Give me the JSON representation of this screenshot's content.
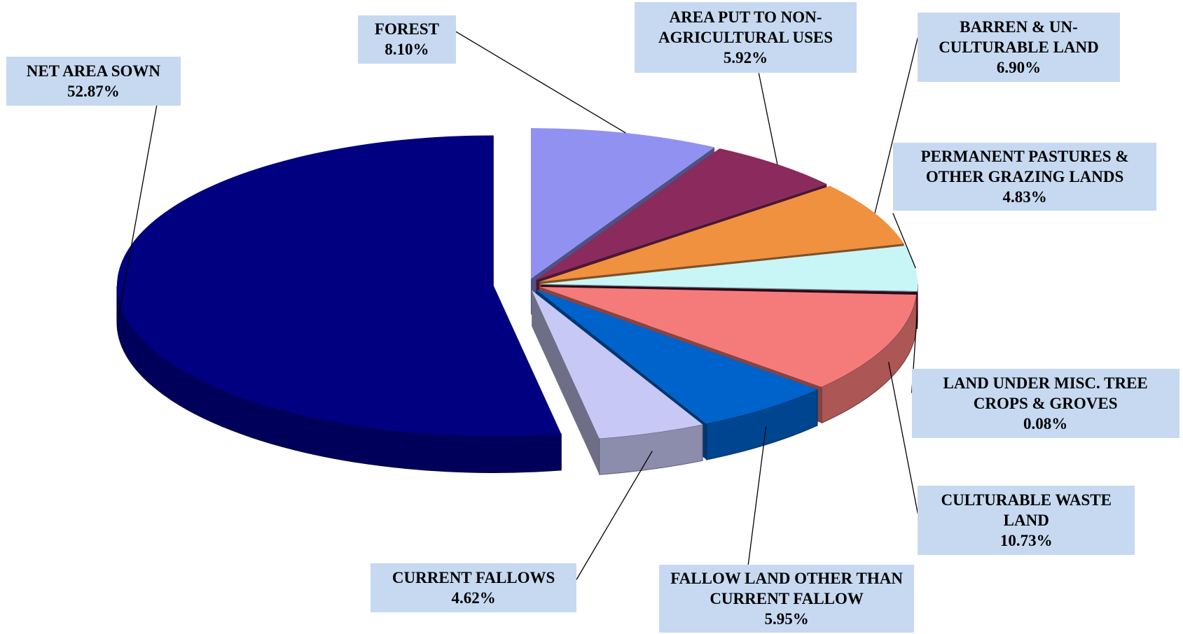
{
  "chart_data": {
    "type": "pie",
    "categories": [
      "FOREST",
      "AREA PUT TO NON-AGRICULTURAL USES",
      "BARREN & UN-CULTURABLE LAND",
      "PERMANENT PASTURES & OTHER GRAZING LANDS",
      "LAND UNDER MISC. TREE CROPS & GROVES",
      "CULTURABLE WASTE LAND",
      "FALLOW LAND OTHER THAN CURRENT FALLOW",
      "CURRENT FALLOWS",
      "NET AREA SOWN"
    ],
    "values": [
      8.1,
      5.92,
      6.9,
      4.83,
      0.08,
      10.73,
      5.95,
      4.62,
      52.87
    ],
    "value_labels": [
      "8.10%",
      "5.92%",
      "6.90%",
      "4.83%",
      "0.08%",
      "10.73%",
      "5.95%",
      "4.62%",
      "52.87%"
    ],
    "colors": [
      "#9191f2",
      "#8b2a5c",
      "#f0913f",
      "#c8f6f6",
      "#4a1030",
      "#f57b7b",
      "#0063cc",
      "#c8c8f6",
      "#000080"
    ]
  }
}
